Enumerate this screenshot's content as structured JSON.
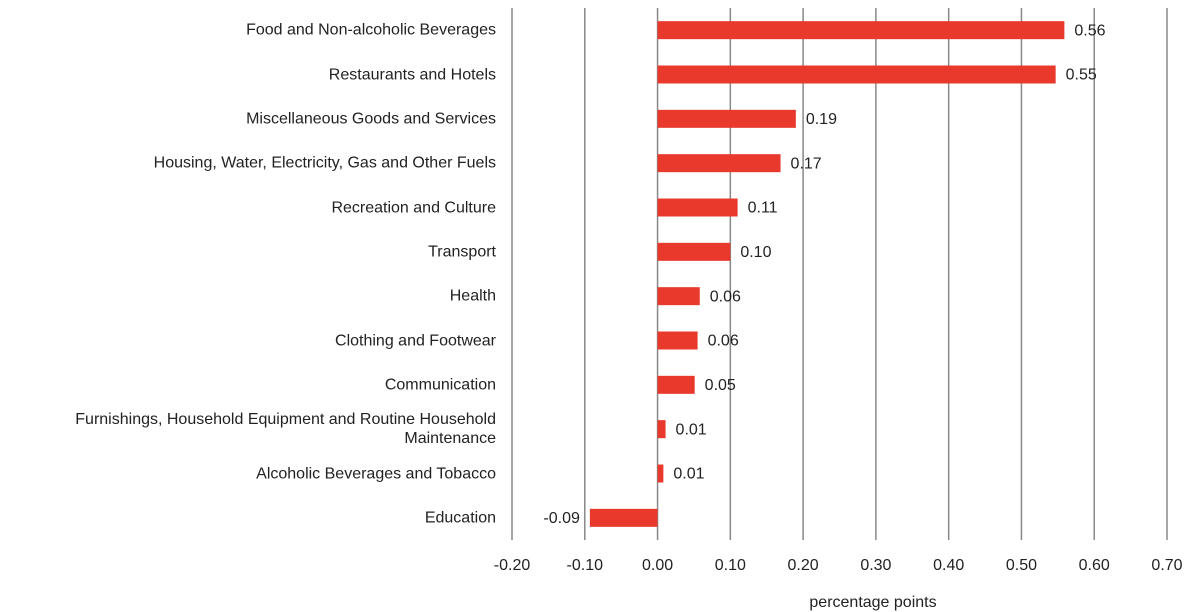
{
  "chart_data": {
    "type": "bar",
    "orientation": "horizontal",
    "categories": [
      "Food and Non-alcoholic Beverages",
      "Restaurants and Hotels",
      "Miscellaneous Goods and Services",
      "Housing, Water, Electricity, Gas and Other Fuels",
      "Recreation and Culture",
      "Transport",
      "Health",
      "Clothing and Footwear",
      "Communication",
      "Furnishings, Household Equipment and Routine Household Maintenance",
      "Alcoholic Beverages and Tobacco",
      "Education"
    ],
    "values": [
      0.559,
      0.547,
      0.19,
      0.169,
      0.11,
      0.1,
      0.058,
      0.055,
      0.051,
      0.011,
      0.008,
      -0.093
    ],
    "value_labels": [
      "0.56",
      "0.55",
      "0.19",
      "0.17",
      "0.11",
      "0.10",
      "0.06",
      "0.06",
      "0.05",
      "0.01",
      "0.01",
      "-0.09"
    ],
    "color": "#e8392c",
    "xlabel": "percentage points",
    "xlim": [
      -0.2,
      0.7
    ],
    "xticks": [
      {
        "value": -0.2,
        "label": "-0.20"
      },
      {
        "value": -0.1,
        "label": "-0.10"
      },
      {
        "value": 0,
        "label": "0.00"
      },
      {
        "value": 0.1,
        "label": "0.10"
      },
      {
        "value": 0.2,
        "label": "0.20"
      },
      {
        "value": 0.3,
        "label": "0.30"
      },
      {
        "value": 0.4,
        "label": "0.40"
      },
      {
        "value": 0.5,
        "label": "0.50"
      },
      {
        "value": 0.6,
        "label": "0.60"
      },
      {
        "value": 0.7,
        "label": "0.70"
      }
    ],
    "grid": true
  }
}
